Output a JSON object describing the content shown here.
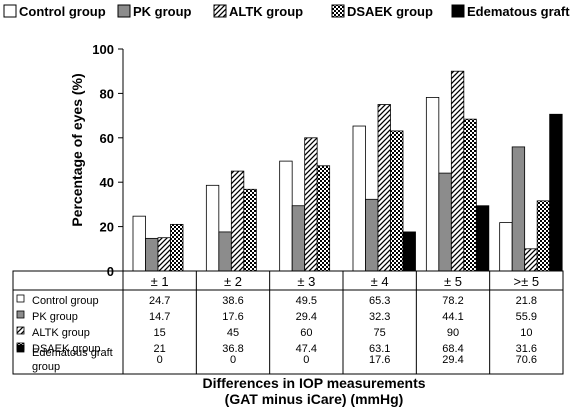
{
  "chart_data": {
    "type": "bar",
    "categories": [
      "± 1",
      "± 2",
      "± 3",
      "± 4",
      "± 5",
      ">± 5"
    ],
    "series": [
      {
        "name": "Control group",
        "values": [
          24.7,
          38.6,
          49.5,
          65.3,
          78.2,
          21.8
        ],
        "pattern": "white"
      },
      {
        "name": "PK group",
        "values": [
          14.7,
          17.6,
          29.4,
          32.3,
          44.1,
          55.9
        ],
        "pattern": "gray"
      },
      {
        "name": "ALTK group",
        "values": [
          15,
          45,
          60,
          75,
          90,
          10
        ],
        "pattern": "diagonal-hatch"
      },
      {
        "name": "DSAEK group",
        "values": [
          21,
          36.8,
          47.4,
          63.1,
          68.4,
          31.6
        ],
        "pattern": "checker"
      },
      {
        "name": "Edematous graft group",
        "values": [
          0,
          0,
          0,
          17.6,
          29.4,
          70.6
        ],
        "pattern": "black"
      }
    ],
    "table_labels": [
      "Control group",
      "PK group",
      "ALTK group",
      "DSAEK group",
      "Edematous graft group"
    ],
    "table_values": [
      [
        "24.7",
        "38.6",
        "49.5",
        "65.3",
        "78.2",
        "21.8"
      ],
      [
        "14.7",
        "17.6",
        "29.4",
        "32.3",
        "44.1",
        "55.9"
      ],
      [
        "15",
        "45",
        "60",
        "75",
        "90",
        "10"
      ],
      [
        "21",
        "36.8",
        "47.4",
        "63.1",
        "68.4",
        "31.6"
      ],
      [
        "0",
        "0",
        "0",
        "17.6",
        "29.4",
        "70.6"
      ]
    ],
    "ylabel": "Percentage of eyes (%)",
    "xlabel_line1": "Differences in IOP measurements",
    "xlabel_line2": "(GAT minus iCare) (mmHg)",
    "ylim": [
      0,
      100
    ],
    "yticks": [
      0,
      20,
      40,
      60,
      80,
      100
    ],
    "legend_position": "top",
    "grid": false
  }
}
